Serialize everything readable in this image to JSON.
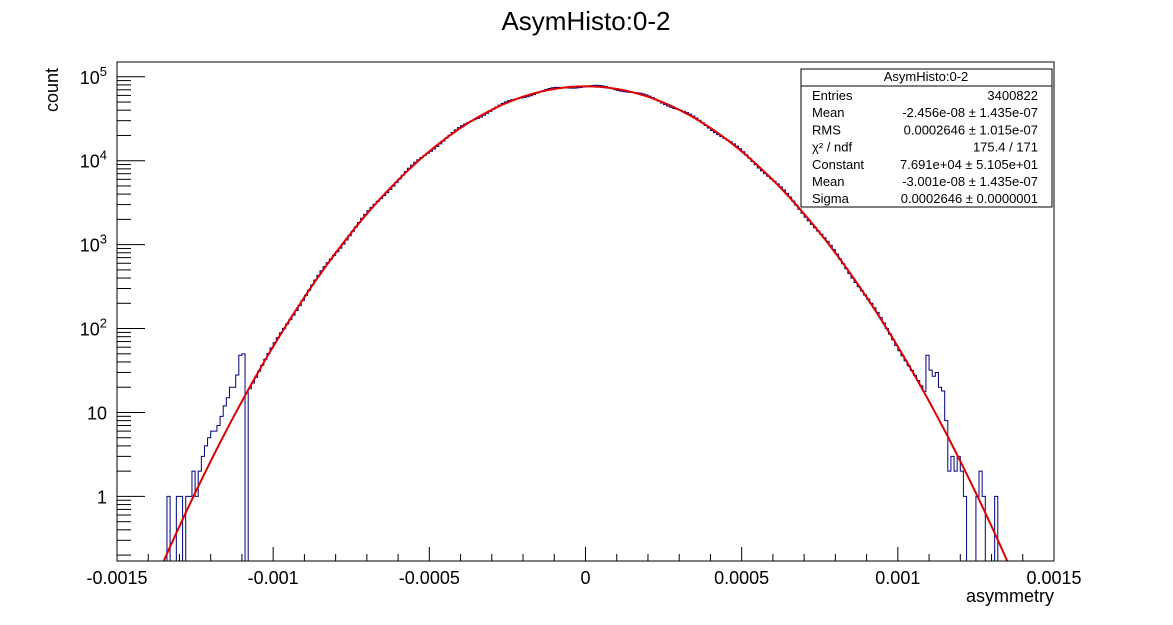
{
  "chart_data": {
    "type": "histogram",
    "title": "AsymHisto:0-2",
    "xlabel": "asymmetry",
    "ylabel": "count",
    "xlim": [
      -0.0015,
      0.0015
    ],
    "ylim": [
      0.17,
      150000
    ],
    "yscale": "log",
    "x_ticks": [
      {
        "v": -0.0015,
        "label": "-0.0015"
      },
      {
        "v": -0.001,
        "label": "-0.001"
      },
      {
        "v": -0.0005,
        "label": "-0.0005"
      },
      {
        "v": 0,
        "label": "0"
      },
      {
        "v": 0.0005,
        "label": "0.0005"
      },
      {
        "v": 0.001,
        "label": "0.001"
      },
      {
        "v": 0.0015,
        "label": "0.0015"
      }
    ],
    "y_ticks": [
      {
        "v": 1,
        "label": "1",
        "sup": ""
      },
      {
        "v": 10,
        "label": "10",
        "sup": ""
      },
      {
        "v": 100,
        "label": "10",
        "sup": "2"
      },
      {
        "v": 1000,
        "label": "10",
        "sup": "3"
      },
      {
        "v": 10000,
        "label": "10",
        "sup": "4"
      },
      {
        "v": 100000,
        "label": "10",
        "sup": "5"
      }
    ],
    "histogram": {
      "name": "AsymHisto:0-2",
      "color": "#000080",
      "bin_width": 1e-05,
      "sparse_bins": [
        {
          "x": -0.00134,
          "y": 1
        },
        {
          "x": -0.00131,
          "y": 1
        },
        {
          "x": -0.0013,
          "y": 1
        },
        {
          "x": -0.00128,
          "y": 1
        },
        {
          "x": -0.00127,
          "y": 1
        },
        {
          "x": -0.00126,
          "y": 2
        },
        {
          "x": -0.00125,
          "y": 1
        },
        {
          "x": -0.00124,
          "y": 2
        },
        {
          "x": -0.00123,
          "y": 3
        },
        {
          "x": -0.00122,
          "y": 4
        },
        {
          "x": -0.00121,
          "y": 5
        },
        {
          "x": -0.0012,
          "y": 6
        },
        {
          "x": -0.00119,
          "y": 6
        },
        {
          "x": -0.00118,
          "y": 7
        },
        {
          "x": -0.00117,
          "y": 9
        },
        {
          "x": -0.00116,
          "y": 12
        },
        {
          "x": -0.00115,
          "y": 15
        },
        {
          "x": -0.00114,
          "y": 20
        },
        {
          "x": -0.00113,
          "y": 20
        },
        {
          "x": -0.00112,
          "y": 28
        },
        {
          "x": -0.00111,
          "y": 48
        },
        {
          "x": -0.0011,
          "y": 50
        },
        {
          "x": 0.00109,
          "y": 48
        },
        {
          "x": 0.0011,
          "y": 32
        },
        {
          "x": 0.00111,
          "y": 27
        },
        {
          "x": 0.00112,
          "y": 30
        },
        {
          "x": 0.00113,
          "y": 20
        },
        {
          "x": 0.00114,
          "y": 18
        },
        {
          "x": 0.00115,
          "y": 8
        },
        {
          "x": 0.00116,
          "y": 2
        },
        {
          "x": 0.00117,
          "y": 3
        },
        {
          "x": 0.00118,
          "y": 2
        },
        {
          "x": 0.00119,
          "y": 3
        },
        {
          "x": 0.0012,
          "y": 2
        },
        {
          "x": 0.00121,
          "y": 1
        },
        {
          "x": 0.00122,
          "y": 0
        },
        {
          "x": 0.00123,
          "y": 0
        },
        {
          "x": 0.00124,
          "y": 0
        },
        {
          "x": 0.00125,
          "y": 1
        },
        {
          "x": 0.00126,
          "y": 2
        },
        {
          "x": 0.00127,
          "y": 1
        },
        {
          "x": 0.00128,
          "y": 0
        },
        {
          "x": 0.00129,
          "y": 0
        },
        {
          "x": 0.0013,
          "y": 0
        },
        {
          "x": 0.00131,
          "y": 1
        },
        {
          "x": 0.00132,
          "y": 0
        }
      ]
    },
    "fit": {
      "function": "gaus",
      "color": "#e00000",
      "constant": 76910,
      "mean": -3.001e-08,
      "sigma": 0.0002646,
      "x_range": [
        -0.00137,
        0.00137
      ]
    },
    "stats_box": {
      "title": "AsymHisto:0-2",
      "rows": [
        {
          "label": "Entries",
          "value": "3400822"
        },
        {
          "label": "Mean",
          "value": "-2.456e-08 ± 1.435e-07"
        },
        {
          "label": "RMS",
          "value": "0.0002646 ± 1.015e-07"
        },
        {
          "label": "χ² / ndf",
          "value": "175.4 / 171"
        },
        {
          "label": "Constant",
          "value": "7.691e+04 ± 5.105e+01"
        },
        {
          "label": "Mean",
          "value": "-3.001e-08 ± 1.435e-07"
        },
        {
          "label": "Sigma",
          "value": "0.0002646 ± 0.0000001"
        }
      ]
    }
  }
}
